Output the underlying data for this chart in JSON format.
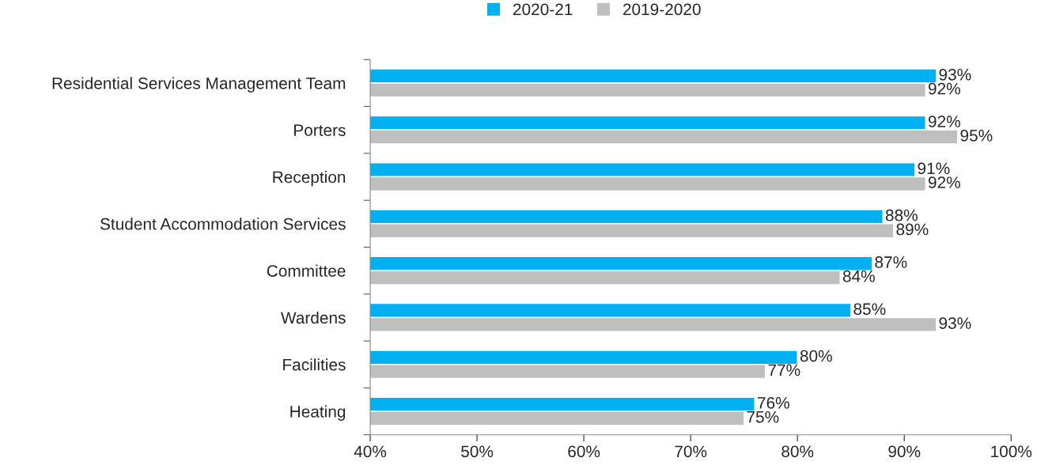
{
  "chart_data": {
    "type": "bar",
    "orientation": "horizontal",
    "categories": [
      "Residential Services Management Team",
      "Porters",
      "Reception",
      "Student Accommodation Services",
      "Committee",
      "Wardens",
      "Facilities",
      "Heating"
    ],
    "series": [
      {
        "name": "2020-21",
        "color": "#00b0f0",
        "values": [
          93,
          92,
          91,
          88,
          87,
          85,
          80,
          76
        ],
        "value_labels": [
          "93%",
          "92%",
          "91%",
          "88%",
          "87%",
          "85%",
          "80%",
          "76%"
        ]
      },
      {
        "name": "2019-2020",
        "color": "#bfbfbf",
        "values": [
          92,
          95,
          92,
          89,
          84,
          93,
          77,
          75
        ],
        "value_labels": [
          "92%",
          "95%",
          "92%",
          "89%",
          "84%",
          "93%",
          "77%",
          "75%"
        ]
      }
    ],
    "xlim": [
      40,
      100
    ],
    "xticks": [
      {
        "value": 40,
        "label": "40%"
      },
      {
        "value": 50,
        "label": "50%"
      },
      {
        "value": 60,
        "label": "60%"
      },
      {
        "value": 70,
        "label": "70%"
      },
      {
        "value": 80,
        "label": "80%"
      },
      {
        "value": 90,
        "label": "90%"
      },
      {
        "value": 100,
        "label": "100%"
      }
    ],
    "grid": false,
    "legend": "top"
  }
}
